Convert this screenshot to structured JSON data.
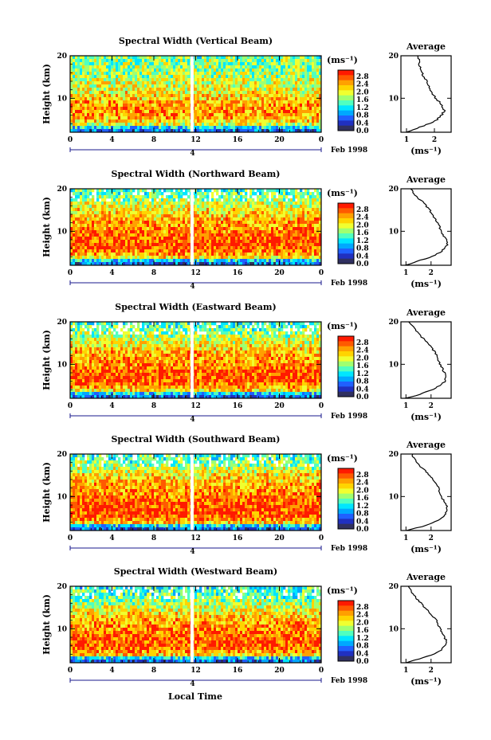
{
  "common": {
    "x_ticks": [
      "0",
      "4",
      "8",
      "12",
      "16",
      "20",
      "0"
    ],
    "date_label": "4",
    "month_label": "Feb 1998",
    "y_label": "Height (km)",
    "y_ticks": [
      "20",
      "10"
    ],
    "colorbar_unit": "(ms⁻¹)",
    "colorbar_ticks": [
      "2.8",
      "2.4",
      "2.0",
      "1.6",
      "1.2",
      "0.8",
      "0.4",
      "0.0"
    ],
    "colorbar_colors": [
      "#ff1a00",
      "#ff5a00",
      "#ffa000",
      "#ffd400",
      "#f0ff30",
      "#a0ff70",
      "#50ffc0",
      "#00e6ff",
      "#00a8ff",
      "#2060ff",
      "#2030c0",
      "#303060"
    ],
    "avg_title": "Average",
    "avg_xlabel": "(ms⁻¹)",
    "avg_y_ticks": [
      "20",
      "10"
    ],
    "x_axis_label": "Local Time"
  },
  "chart_data": [
    {
      "type": "heatmap",
      "title": "Spectral Width (Vertical Beam)",
      "x_range_hours": [
        0,
        24
      ],
      "y_range_km": [
        2,
        20
      ],
      "color_range": [
        0,
        2.8
      ],
      "avg_xticks": [
        "1",
        "2"
      ],
      "avg_xlim": [
        0.8,
        2.6
      ],
      "avg_profile": {
        "height_km": [
          2,
          3,
          4,
          5,
          6,
          7,
          8,
          9,
          10,
          11,
          12,
          13,
          14,
          15,
          16,
          17,
          18,
          19,
          20
        ],
        "value": [
          1.0,
          1.4,
          1.8,
          2.1,
          2.25,
          2.35,
          2.3,
          2.2,
          2.05,
          1.95,
          1.85,
          1.8,
          1.75,
          1.6,
          1.55,
          1.5,
          1.45,
          1.45,
          1.4
        ]
      }
    },
    {
      "type": "heatmap",
      "title": "Spectral Width (Northward Beam)",
      "x_range_hours": [
        0,
        24
      ],
      "y_range_km": [
        2,
        20
      ],
      "color_range": [
        0,
        2.8
      ],
      "avg_xticks": [
        "1",
        "2"
      ],
      "avg_xlim": [
        0.8,
        2.8
      ],
      "avg_profile": {
        "height_km": [
          2,
          3,
          4,
          5,
          6,
          7,
          8,
          9,
          10,
          11,
          12,
          13,
          14,
          15,
          16,
          17,
          18,
          19,
          20
        ],
        "value": [
          1.0,
          1.5,
          2.0,
          2.35,
          2.55,
          2.65,
          2.6,
          2.5,
          2.4,
          2.35,
          2.25,
          2.15,
          2.05,
          1.95,
          1.8,
          1.65,
          1.45,
          1.3,
          1.2
        ]
      }
    },
    {
      "type": "heatmap",
      "title": "Spectral Width (Eastward Beam)",
      "x_range_hours": [
        0,
        24
      ],
      "y_range_km": [
        2,
        20
      ],
      "color_range": [
        0,
        2.8
      ],
      "avg_xticks": [
        "1",
        "2"
      ],
      "avg_xlim": [
        0.8,
        2.8
      ],
      "avg_profile": {
        "height_km": [
          2,
          3,
          4,
          5,
          6,
          7,
          8,
          9,
          10,
          11,
          12,
          13,
          14,
          15,
          16,
          17,
          18,
          19,
          20
        ],
        "value": [
          1.0,
          1.6,
          2.05,
          2.35,
          2.55,
          2.6,
          2.55,
          2.45,
          2.35,
          2.3,
          2.25,
          2.15,
          2.0,
          1.85,
          1.7,
          1.55,
          1.4,
          1.25,
          1.15
        ]
      }
    },
    {
      "type": "heatmap",
      "title": "Spectral Width (Southward Beam)",
      "x_range_hours": [
        0,
        24
      ],
      "y_range_km": [
        2,
        20
      ],
      "color_range": [
        0,
        2.8
      ],
      "avg_xticks": [
        "1",
        "2"
      ],
      "avg_xlim": [
        0.8,
        2.8
      ],
      "avg_profile": {
        "height_km": [
          2,
          3,
          4,
          5,
          6,
          7,
          8,
          9,
          10,
          11,
          12,
          13,
          14,
          15,
          16,
          17,
          18,
          19,
          20
        ],
        "value": [
          1.0,
          1.7,
          2.15,
          2.45,
          2.6,
          2.65,
          2.6,
          2.5,
          2.4,
          2.35,
          2.3,
          2.2,
          2.1,
          1.95,
          1.8,
          1.6,
          1.45,
          1.3,
          1.25
        ]
      }
    },
    {
      "type": "heatmap",
      "title": "Spectral Width (Westward Beam)",
      "x_range_hours": [
        0,
        24
      ],
      "y_range_km": [
        2,
        20
      ],
      "color_range": [
        0,
        2.8
      ],
      "avg_xticks": [
        "1",
        "2"
      ],
      "avg_xlim": [
        0.8,
        2.8
      ],
      "avg_profile": {
        "height_km": [
          2,
          3,
          4,
          5,
          6,
          7,
          8,
          9,
          10,
          11,
          12,
          13,
          14,
          15,
          16,
          17,
          18,
          19,
          20
        ],
        "value": [
          1.0,
          1.6,
          2.1,
          2.4,
          2.55,
          2.6,
          2.55,
          2.45,
          2.35,
          2.3,
          2.2,
          2.05,
          1.9,
          1.75,
          1.6,
          1.45,
          1.3,
          1.2,
          1.1
        ]
      }
    }
  ]
}
